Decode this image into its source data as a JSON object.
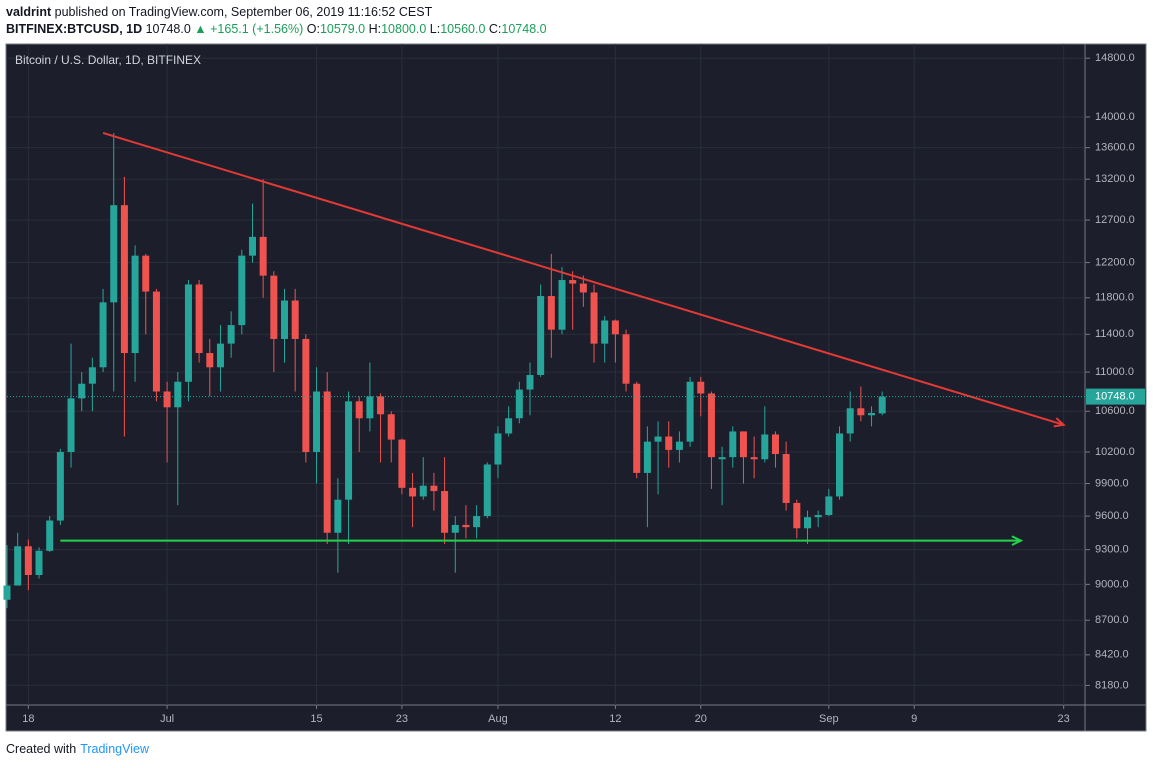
{
  "header": {
    "author": "valdrint",
    "published": "published on TradingView.com, September 06, 2019 11:16:52 CEST",
    "symbol": "BITFINEX:BTCUSD, 1D",
    "last": "10748.0",
    "change": "▲ +165.1 (+1.56%)",
    "open_label": "O:",
    "open": "10579.0",
    "high_label": "H:",
    "high": "10800.0",
    "low_label": "L:",
    "low": "10560.0",
    "close_label": "C:",
    "close": "10748.0"
  },
  "footer": {
    "created": "Created with",
    "brand": "TradingView"
  },
  "chart_data": {
    "type": "candlestick",
    "title": "Bitcoin / U.S. Dollar, 1D, BITFINEX",
    "log_scale": true,
    "grid": true,
    "up_color": "#26a69a",
    "down_color": "#ef5350",
    "xlim": [
      "2019-06-16",
      "2019-09-25"
    ],
    "xticks": [
      {
        "value": "2019-06-18",
        "label": "18"
      },
      {
        "value": "2019-07-01",
        "label": "Jul"
      },
      {
        "value": "2019-07-15",
        "label": "15"
      },
      {
        "value": "2019-07-23",
        "label": "23"
      },
      {
        "value": "2019-08-01",
        "label": "Aug"
      },
      {
        "value": "2019-08-12",
        "label": "12"
      },
      {
        "value": "2019-08-20",
        "label": "20"
      },
      {
        "value": "2019-09-01",
        "label": "Sep"
      },
      {
        "value": "2019-09-09",
        "label": "9"
      },
      {
        "value": "2019-09-23",
        "label": "23"
      }
    ],
    "ylim": [
      8030,
      15000
    ],
    "yticks": [
      {
        "value": 8180,
        "label": "8180.0"
      },
      {
        "value": 8420,
        "label": "8420.0"
      },
      {
        "value": 8700,
        "label": "8700.0"
      },
      {
        "value": 9000,
        "label": "9000.0"
      },
      {
        "value": 9300,
        "label": "9300.0"
      },
      {
        "value": 9600,
        "label": "9600.0"
      },
      {
        "value": 9900,
        "label": "9900.0"
      },
      {
        "value": 10200,
        "label": "10200.0"
      },
      {
        "value": 10600,
        "label": "10600.0"
      },
      {
        "value": 11000,
        "label": "11000.0"
      },
      {
        "value": 11400,
        "label": "11400.0"
      },
      {
        "value": 11800,
        "label": "11800.0"
      },
      {
        "value": 12200,
        "label": "12200.0"
      },
      {
        "value": 12700,
        "label": "12700.0"
      },
      {
        "value": 13200,
        "label": "13200.0"
      },
      {
        "value": 13600,
        "label": "13600.0"
      },
      {
        "value": 14000,
        "label": "14000.0"
      },
      {
        "value": 14800,
        "label": "14800.0"
      }
    ],
    "last_price": {
      "value": 10748,
      "label": "10748.0"
    },
    "x": [
      "2019-06-16",
      "2019-06-17",
      "2019-06-18",
      "2019-06-19",
      "2019-06-20",
      "2019-06-21",
      "2019-06-22",
      "2019-06-23",
      "2019-06-24",
      "2019-06-25",
      "2019-06-26",
      "2019-06-27",
      "2019-06-28",
      "2019-06-29",
      "2019-06-30",
      "2019-07-01",
      "2019-07-02",
      "2019-07-03",
      "2019-07-04",
      "2019-07-05",
      "2019-07-06",
      "2019-07-07",
      "2019-07-08",
      "2019-07-09",
      "2019-07-10",
      "2019-07-11",
      "2019-07-12",
      "2019-07-13",
      "2019-07-14",
      "2019-07-15",
      "2019-07-16",
      "2019-07-17",
      "2019-07-18",
      "2019-07-19",
      "2019-07-20",
      "2019-07-21",
      "2019-07-22",
      "2019-07-23",
      "2019-07-24",
      "2019-07-25",
      "2019-07-26",
      "2019-07-27",
      "2019-07-28",
      "2019-07-29",
      "2019-07-30",
      "2019-07-31",
      "2019-08-01",
      "2019-08-02",
      "2019-08-03",
      "2019-08-04",
      "2019-08-05",
      "2019-08-06",
      "2019-08-07",
      "2019-08-08",
      "2019-08-09",
      "2019-08-10",
      "2019-08-11",
      "2019-08-12",
      "2019-08-13",
      "2019-08-14",
      "2019-08-15",
      "2019-08-16",
      "2019-08-17",
      "2019-08-18",
      "2019-08-19",
      "2019-08-20",
      "2019-08-21",
      "2019-08-22",
      "2019-08-23",
      "2019-08-24",
      "2019-08-25",
      "2019-08-26",
      "2019-08-27",
      "2019-08-28",
      "2019-08-29",
      "2019-08-30",
      "2019-08-31",
      "2019-09-01",
      "2019-09-02",
      "2019-09-03",
      "2019-09-04",
      "2019-09-05",
      "2019-09-06"
    ],
    "open": [
      8870,
      8990,
      9330,
      9080,
      9290,
      9560,
      10200,
      10730,
      10880,
      11050,
      11750,
      12880,
      11200,
      12280,
      11870,
      10800,
      10640,
      10900,
      11950,
      11200,
      11050,
      11300,
      11500,
      12280,
      12500,
      12050,
      11350,
      11770,
      11350,
      10200,
      10800,
      9450,
      9750,
      10700,
      10530,
      10750,
      10570,
      10320,
      9860,
      9780,
      9880,
      9830,
      9450,
      9520,
      9500,
      9600,
      10080,
      10380,
      10530,
      10820,
      10970,
      11820,
      11450,
      12000,
      11960,
      11860,
      11300,
      11550,
      11400,
      10880,
      10000,
      10300,
      10350,
      10220,
      10300,
      10900,
      10780,
      10130,
      10150,
      10400,
      10150,
      10130,
      10370,
      10180,
      9720,
      9490,
      9590,
      9610,
      9780,
      10380,
      10630,
      10560,
      10579
    ],
    "high": [
      9340,
      9450,
      9390,
      9320,
      9600,
      10230,
      11300,
      11000,
      11150,
      11900,
      13790,
      13230,
      12400,
      12300,
      11900,
      10900,
      11000,
      12000,
      12000,
      11350,
      11500,
      11650,
      12350,
      12900,
      13200,
      12100,
      11900,
      11900,
      11400,
      11050,
      11000,
      9950,
      10800,
      10750,
      11100,
      10780,
      10600,
      10330,
      10000,
      10150,
      10000,
      10150,
      9600,
      9700,
      9700,
      10100,
      10450,
      10650,
      10900,
      11100,
      11950,
      12300,
      12150,
      12100,
      12050,
      11950,
      11600,
      11560,
      11450,
      10900,
      10450,
      10500,
      10500,
      10400,
      10950,
      10950,
      10800,
      10250,
      10450,
      10400,
      10350,
      10650,
      10400,
      10300,
      9750,
      9650,
      9650,
      9850,
      10450,
      10800,
      10850,
      10650,
      10800
    ],
    "low": [
      8800,
      8990,
      8950,
      9050,
      9280,
      9520,
      10050,
      10600,
      10600,
      11000,
      10800,
      10350,
      10900,
      11400,
      10700,
      10100,
      9700,
      10700,
      11100,
      10750,
      10800,
      11150,
      11400,
      12200,
      11800,
      11000,
      11100,
      10800,
      10100,
      9900,
      9350,
      9100,
      9350,
      10200,
      10400,
      10100,
      10100,
      9800,
      9500,
      9750,
      9650,
      9350,
      9100,
      9400,
      9400,
      9580,
      9950,
      10350,
      10480,
      10560,
      10950,
      11150,
      11400,
      11450,
      11700,
      11100,
      11100,
      11100,
      10800,
      9950,
      9500,
      9800,
      10050,
      10100,
      10250,
      10550,
      9850,
      9700,
      10050,
      9900,
      9950,
      10100,
      10050,
      9650,
      9400,
      9350,
      9500,
      9600,
      9750,
      10300,
      10500,
      10450,
      10560
    ],
    "close": [
      8990,
      9330,
      9080,
      9290,
      9560,
      10200,
      10730,
      10880,
      11050,
      11750,
      12880,
      11200,
      12280,
      11870,
      10800,
      10640,
      10900,
      11950,
      11200,
      11050,
      11300,
      11500,
      12280,
      12500,
      12050,
      11350,
      11770,
      11350,
      10200,
      10800,
      9450,
      9750,
      10700,
      10530,
      10750,
      10570,
      10320,
      9860,
      9780,
      9880,
      9830,
      9450,
      9520,
      9500,
      9600,
      10080,
      10380,
      10530,
      10820,
      10970,
      11820,
      11450,
      12000,
      11960,
      11860,
      11300,
      11550,
      11400,
      10880,
      10000,
      10300,
      10350,
      10220,
      10300,
      10900,
      10780,
      10150,
      10150,
      10400,
      10150,
      10130,
      10370,
      10180,
      9720,
      9490,
      9590,
      9610,
      9780,
      10380,
      10630,
      10560,
      10583,
      10748
    ],
    "trendlines": [
      {
        "color": "#e53935",
        "points": [
          [
            "2019-06-25",
            13790
          ],
          [
            "2019-09-23",
            10465
          ]
        ]
      },
      {
        "color": "#22d34a",
        "points": [
          [
            "2019-06-21",
            9380
          ],
          [
            "2019-09-19",
            9380
          ]
        ]
      }
    ]
  }
}
